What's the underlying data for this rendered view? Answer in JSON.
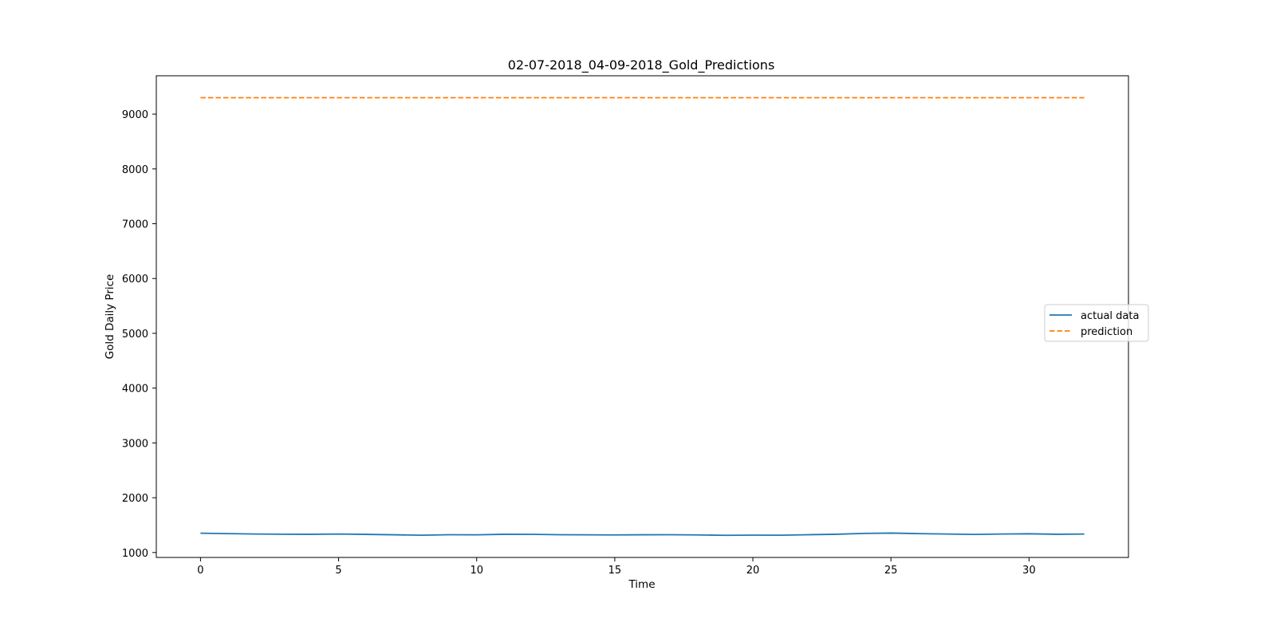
{
  "chart_data": {
    "type": "line",
    "title": "02-07-2018_04-09-2018_Gold_Predictions",
    "xlabel": "Time",
    "ylabel": "Gold Daily Price",
    "xlim": [
      -1.6,
      33.6
    ],
    "ylim": [
      910,
      9700
    ],
    "x_ticks": [
      0,
      5,
      10,
      15,
      20,
      25,
      30
    ],
    "y_ticks": [
      1000,
      2000,
      3000,
      4000,
      5000,
      6000,
      7000,
      8000,
      9000
    ],
    "x": [
      0,
      1,
      2,
      3,
      4,
      5,
      6,
      7,
      8,
      9,
      10,
      11,
      12,
      13,
      14,
      15,
      16,
      17,
      18,
      19,
      20,
      21,
      22,
      23,
      24,
      25,
      26,
      27,
      28,
      29,
      30,
      31,
      32
    ],
    "series": [
      {
        "name": "actual data",
        "color": "#1f77b4",
        "style": "solid",
        "values": [
          1353,
          1345,
          1337,
          1334,
          1333,
          1338,
          1331,
          1324,
          1316,
          1325,
          1323,
          1333,
          1332,
          1325,
          1323,
          1321,
          1324,
          1325,
          1321,
          1314,
          1317,
          1316,
          1325,
          1333,
          1348,
          1355,
          1345,
          1338,
          1330,
          1338,
          1342,
          1333,
          1337
        ]
      },
      {
        "name": "prediction",
        "color": "#ff7f0e",
        "style": "dashed",
        "values": [
          9300,
          9300,
          9300,
          9300,
          9300,
          9300,
          9300,
          9300,
          9300,
          9300,
          9300,
          9300,
          9300,
          9300,
          9300,
          9300,
          9300,
          9300,
          9300,
          9300,
          9300,
          9300,
          9300,
          9300,
          9300,
          9300,
          9300,
          9300,
          9300,
          9300,
          9300,
          9300,
          9300
        ]
      }
    ],
    "legend_position": "center-right",
    "grid": false
  }
}
